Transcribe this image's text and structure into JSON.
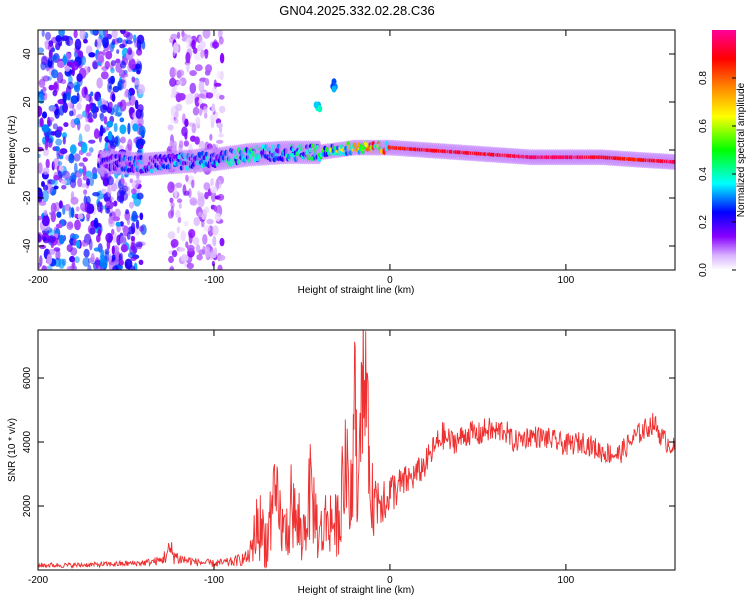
{
  "title": "GN04.2025.332.02.28.C36",
  "chart_data": [
    {
      "type": "heatmap",
      "xlabel": "Height of straight line (km)",
      "ylabel": "Frequency (Hz)",
      "xlim": [
        -200,
        162
      ],
      "ylim": [
        -50,
        50
      ],
      "x_ticks": [
        -200,
        -100,
        0,
        100
      ],
      "y_ticks": [
        -40,
        -20,
        0,
        20,
        40
      ],
      "colorbar": {
        "label": "Normalized spectral amplitude",
        "range": [
          0,
          1
        ],
        "ticks": [
          0.0,
          0.2,
          0.4,
          0.6,
          0.8
        ],
        "colormap": [
          "#ffffff",
          "#d9b3ff",
          "#8800ff",
          "#0000ff",
          "#00ffff",
          "#00ff00",
          "#ffff00",
          "#ff8800",
          "#ff0000",
          "#ff0099"
        ]
      },
      "ridge": {
        "description_points_x": [
          -160,
          -140,
          -120,
          -100,
          -80,
          -60,
          -40,
          -20,
          0,
          20,
          40,
          60,
          80,
          100,
          120,
          140,
          162
        ],
        "center_frequency": [
          -5,
          -6,
          -5,
          -4,
          -2,
          -1,
          -1,
          1,
          1,
          0,
          -1,
          -2,
          -3,
          -3,
          -3,
          -4,
          -5
        ],
        "peak_amplitude": [
          0.2,
          0.3,
          0.3,
          0.35,
          0.4,
          0.4,
          0.45,
          0.7,
          0.85,
          0.9,
          0.9,
          0.9,
          0.95,
          0.95,
          0.9,
          0.85,
          0.95
        ]
      },
      "noise_regions": [
        {
          "x": [
            -200,
            -140
          ],
          "f": [
            -50,
            50
          ],
          "amplitude": 0.25
        },
        {
          "x": [
            -125,
            -95
          ],
          "f": [
            -50,
            50
          ],
          "amplitude": 0.12
        }
      ],
      "blobs": [
        {
          "x": -42,
          "f": 18,
          "amplitude": 0.3
        },
        {
          "x": -32,
          "f": 27,
          "amplitude": 0.25
        }
      ]
    },
    {
      "type": "line",
      "xlabel": "Height of straight line (km)",
      "ylabel": "SNR (10 * v/v)",
      "xlim": [
        -200,
        162
      ],
      "ylim": [
        0,
        7500
      ],
      "x_ticks": [
        -200,
        -100,
        0,
        100
      ],
      "y_ticks": [
        2000,
        4000,
        6000
      ],
      "color": "#ee3030",
      "x": [
        -200,
        -180,
        -160,
        -140,
        -130,
        -125,
        -120,
        -110,
        -100,
        -90,
        -80,
        -75,
        -70,
        -65,
        -60,
        -55,
        -50,
        -45,
        -40,
        -35,
        -30,
        -25,
        -22,
        -20,
        -18,
        -15,
        -10,
        -5,
        0,
        5,
        10,
        15,
        20,
        25,
        30,
        35,
        40,
        45,
        50,
        55,
        60,
        65,
        70,
        80,
        90,
        100,
        110,
        120,
        130,
        140,
        145,
        150,
        155,
        162
      ],
      "y": [
        150,
        150,
        180,
        220,
        300,
        600,
        350,
        250,
        200,
        250,
        400,
        1500,
        900,
        2200,
        1100,
        1800,
        900,
        2500,
        1000,
        1700,
        1300,
        3200,
        1600,
        5500,
        2000,
        6000,
        2200,
        2300,
        2400,
        2600,
        2800,
        3000,
        3300,
        3800,
        4200,
        4000,
        4100,
        4300,
        4200,
        4400,
        4300,
        4400,
        4000,
        4200,
        4100,
        3900,
        4000,
        3700,
        3600,
        4200,
        4400,
        4600,
        4100,
        3800
      ],
      "spread": [
        80,
        80,
        80,
        100,
        150,
        400,
        200,
        120,
        120,
        150,
        250,
        1200,
        900,
        1400,
        900,
        1300,
        800,
        1600,
        900,
        1200,
        1000,
        1800,
        1200,
        2200,
        1500,
        2500,
        1200,
        900,
        700,
        600,
        500,
        450,
        450,
        450,
        450,
        400,
        400,
        400,
        400,
        400,
        400,
        400,
        350,
        350,
        350,
        350,
        350,
        350,
        350,
        350,
        350,
        350,
        350,
        300
      ]
    }
  ]
}
